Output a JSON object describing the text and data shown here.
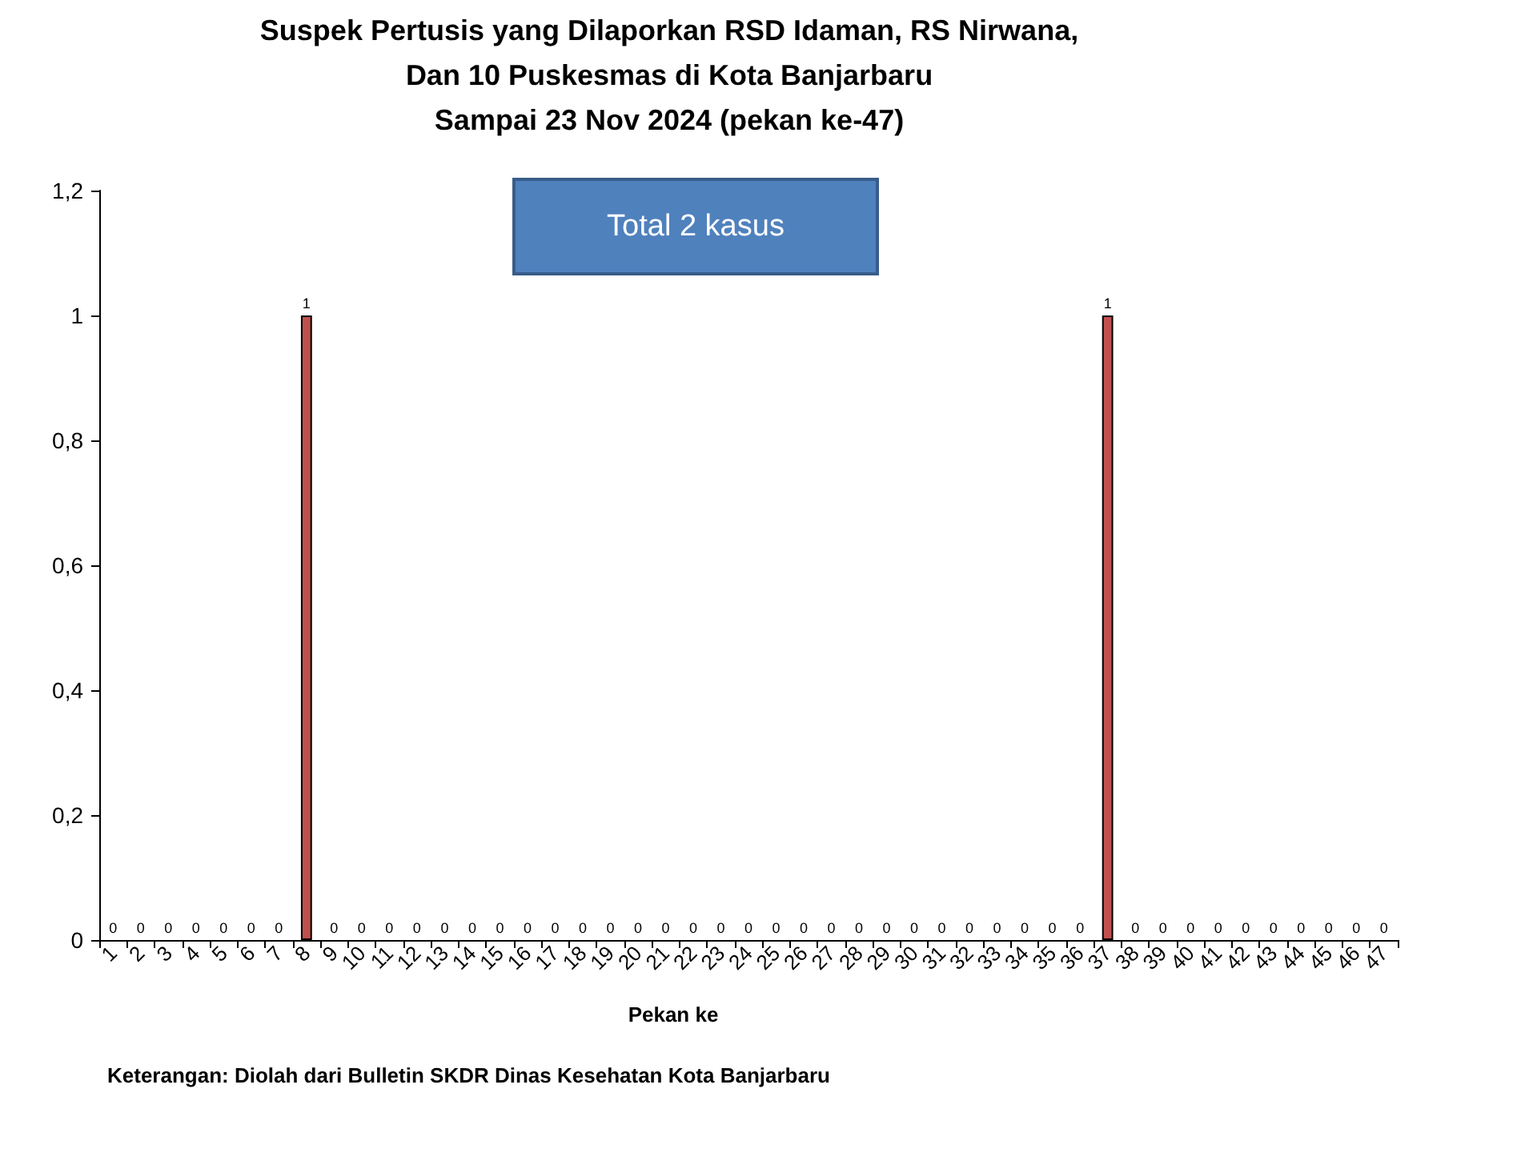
{
  "chart_data": {
    "type": "bar",
    "title": "Suspek Pertusis yang Dilaporkan RSD Idaman, RS Nirwana,\nDan 10 Puskesmas di Kota Banjarbaru\nSampai 23 Nov 2024 (pekan ke-47)",
    "xlabel": "Pekan ke",
    "annotations": [
      "Total 2 kasus",
      "Keterangan: Diolah dari Bulletin SKDR Dinas Kesehatan Kota Banjarbaru"
    ],
    "categories": [
      "1",
      "2",
      "3",
      "4",
      "5",
      "6",
      "7",
      "8",
      "9",
      "10",
      "11",
      "12",
      "13",
      "14",
      "15",
      "16",
      "17",
      "18",
      "19",
      "20",
      "21",
      "22",
      "23",
      "24",
      "25",
      "26",
      "27",
      "28",
      "29",
      "30",
      "31",
      "32",
      "33",
      "34",
      "35",
      "36",
      "37",
      "38",
      "39",
      "40",
      "41",
      "42",
      "43",
      "44",
      "45",
      "46",
      "47"
    ],
    "values": [
      0,
      0,
      0,
      0,
      0,
      0,
      0,
      1,
      0,
      0,
      0,
      0,
      0,
      0,
      0,
      0,
      0,
      0,
      0,
      0,
      0,
      0,
      0,
      0,
      0,
      0,
      0,
      0,
      0,
      0,
      0,
      0,
      0,
      0,
      0,
      0,
      1,
      0,
      0,
      0,
      0,
      0,
      0,
      0,
      0,
      0,
      0
    ],
    "color": "#c0504d",
    "ylim": [
      0,
      1.2
    ],
    "yticks": [
      0,
      {
        "value": 0.2,
        "label": "0,2"
      },
      {
        "value": 0.4,
        "label": "0,4"
      },
      {
        "value": 0.6,
        "label": "0,6"
      },
      {
        "value": 0.8,
        "label": "0,8"
      },
      1,
      {
        "value": 1.2,
        "label": "1,2"
      }
    ],
    "grid": false,
    "data_labels": true
  }
}
